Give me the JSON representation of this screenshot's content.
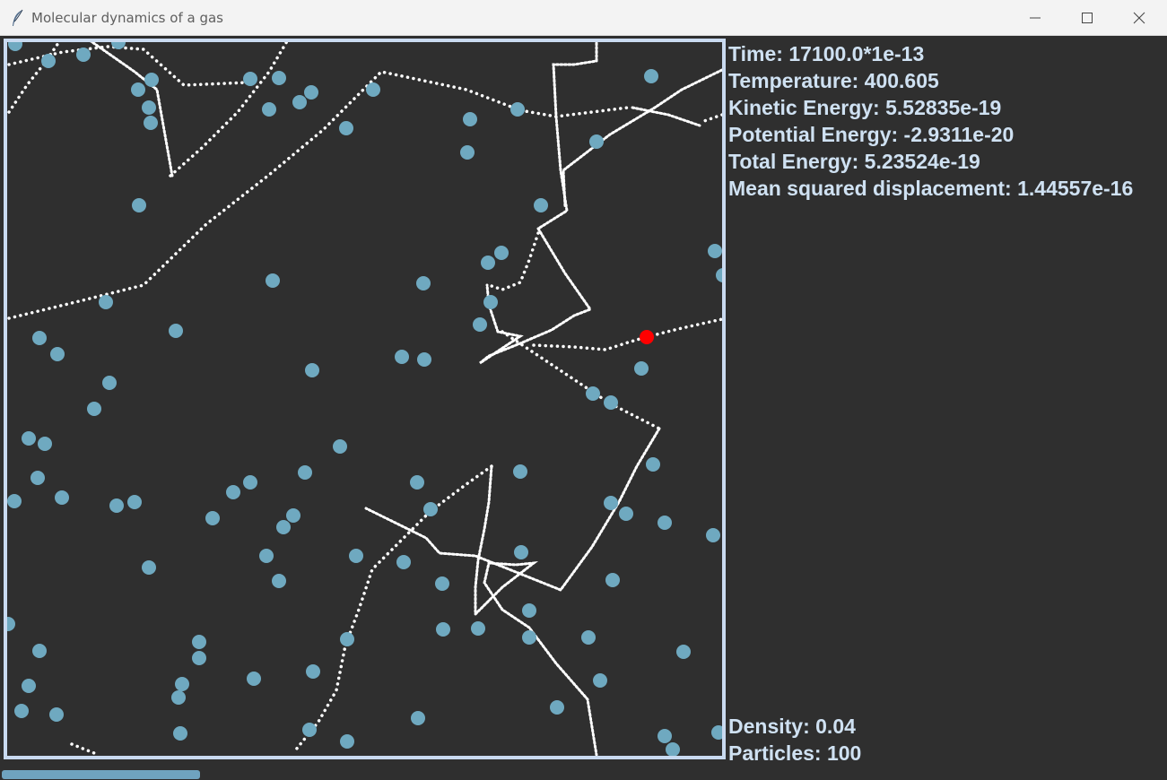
{
  "window": {
    "title": "Molecular dynamics of a gas",
    "app_icon": "feather-icon",
    "controls": [
      "minimize-icon",
      "maximize-icon",
      "close-icon"
    ]
  },
  "stats": {
    "time_label": "Time:",
    "time_value": "17100.0*1e-13",
    "temperature_label": "Temperature:",
    "temperature_value": "400.605",
    "kinetic_label": "Kinetic Energy:",
    "kinetic_value": "5.52835e-19",
    "potential_label": "Potential Energy:",
    "potential_value": "-2.9311e-20",
    "total_label": "Total Energy:",
    "total_value": "5.23524e-19",
    "msd_label": "Mean squared displacement:",
    "msd_value": "1.44557e-16",
    "density_label": "Density:",
    "density_value": "0.04",
    "particles_label": "Particles:",
    "particles_value": "100"
  },
  "progress": {
    "fraction": 0.17
  },
  "colors": {
    "background": "#2f2f2f",
    "box_border": "#c9daf0",
    "particle": "#6fa9c0",
    "tracked_particle": "#ff0000",
    "trajectory": "#ffffff",
    "text": "#cfe1f2"
  }
}
